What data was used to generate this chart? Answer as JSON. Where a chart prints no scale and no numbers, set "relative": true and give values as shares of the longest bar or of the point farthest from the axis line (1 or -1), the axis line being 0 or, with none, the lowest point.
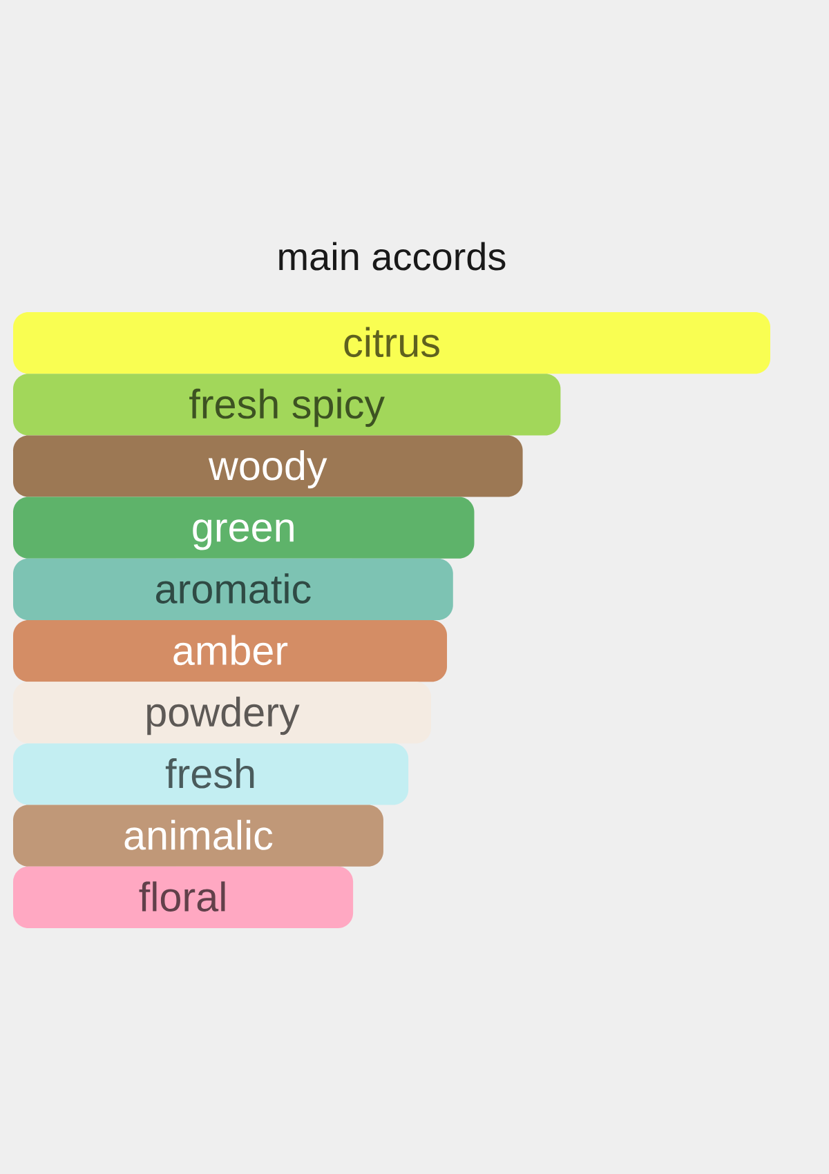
{
  "chart_data": {
    "type": "bar",
    "orientation": "horizontal",
    "relative": true,
    "title": "main accords",
    "categories": [
      "citrus",
      "fresh spicy",
      "woody",
      "green",
      "aromatic",
      "amber",
      "powdery",
      "fresh",
      "animalic",
      "floral"
    ],
    "values": [
      1,
      0.723,
      0.673,
      0.609,
      0.581,
      0.573,
      0.552,
      0.522,
      0.489,
      0.449
    ],
    "colors": [
      "#f9fe52",
      "#a2d75a",
      "#9c7854",
      "#5eb36a",
      "#7dc3b3",
      "#d48d65",
      "#f4ebe2",
      "#c3eef2",
      "#c09878",
      "#ffa8c2"
    ]
  }
}
